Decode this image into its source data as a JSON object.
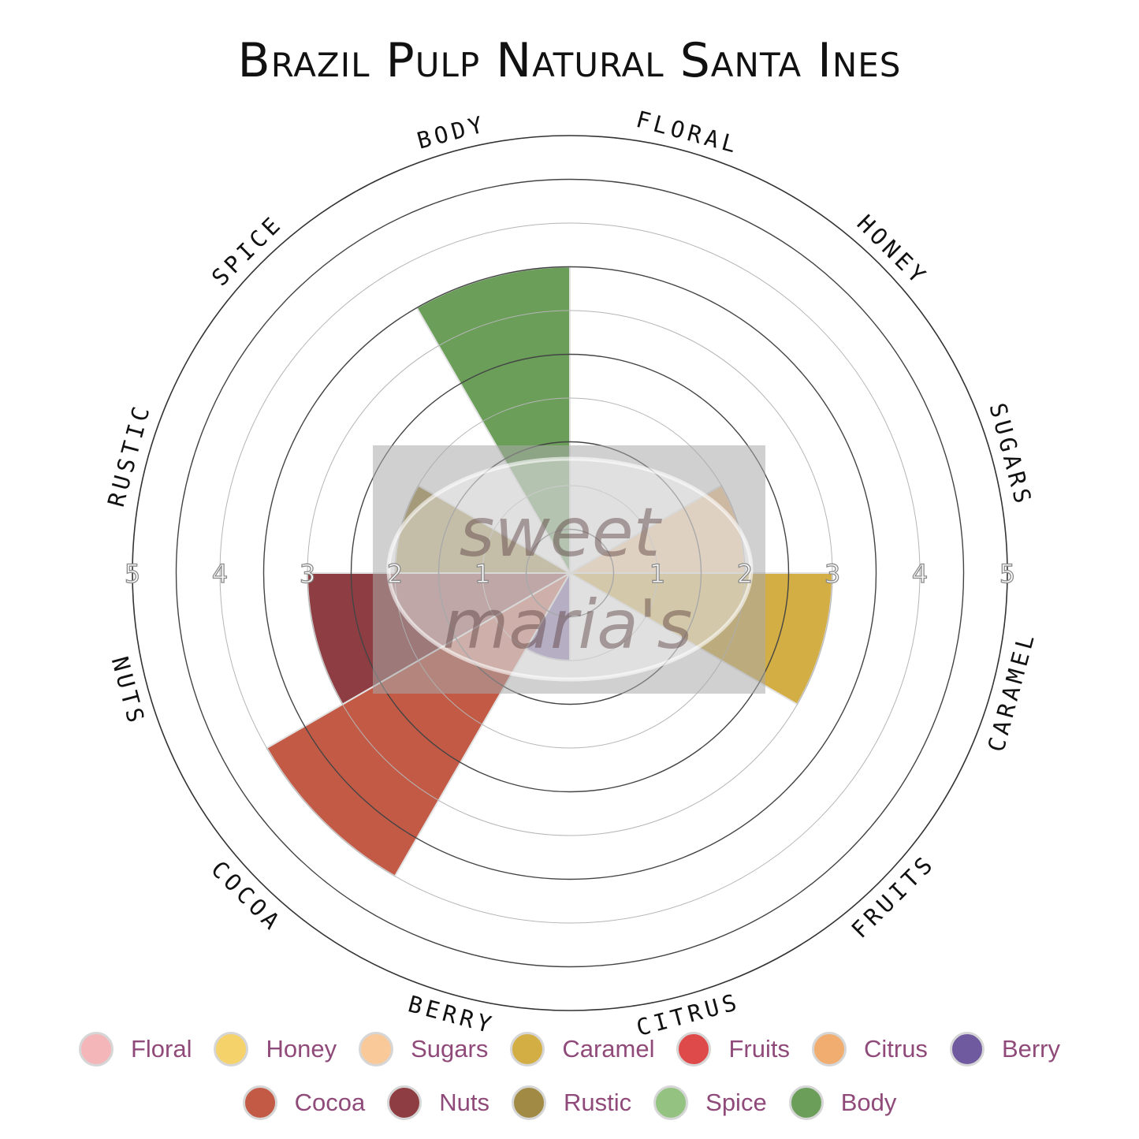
{
  "chart_data": {
    "type": "polar-area",
    "title": "Brazil Pulp Natural Santa Ines",
    "categories": [
      "FLORAL",
      "HONEY",
      "SUGARS",
      "CARAMEL",
      "FRUITS",
      "CITRUS",
      "BERRY",
      "COCOA",
      "NUTS",
      "RUSTIC",
      "SPICE",
      "BODY"
    ],
    "legend_labels": [
      "Floral",
      "Honey",
      "Sugars",
      "Caramel",
      "Fruits",
      "Citrus",
      "Berry",
      "Cocoa",
      "Nuts",
      "Rustic",
      "Spice",
      "Body"
    ],
    "values": [
      0,
      0,
      2,
      3,
      0,
      0,
      1,
      4,
      3,
      2,
      0,
      3.5
    ],
    "colors": [
      "#f4b6b8",
      "#f5d36a",
      "#f9c99a",
      "#d3ae45",
      "#de4a4a",
      "#f0ad6f",
      "#6f5aa0",
      "#c25a46",
      "#8e3e42",
      "#a18a43",
      "#94c381",
      "#6a9e59"
    ],
    "rlim": [
      0,
      5
    ],
    "radial_ticks": [
      "1",
      "2",
      "3",
      "4",
      "5"
    ],
    "grid": true,
    "legend_position": "bottom",
    "watermark": "sweet maria's"
  }
}
